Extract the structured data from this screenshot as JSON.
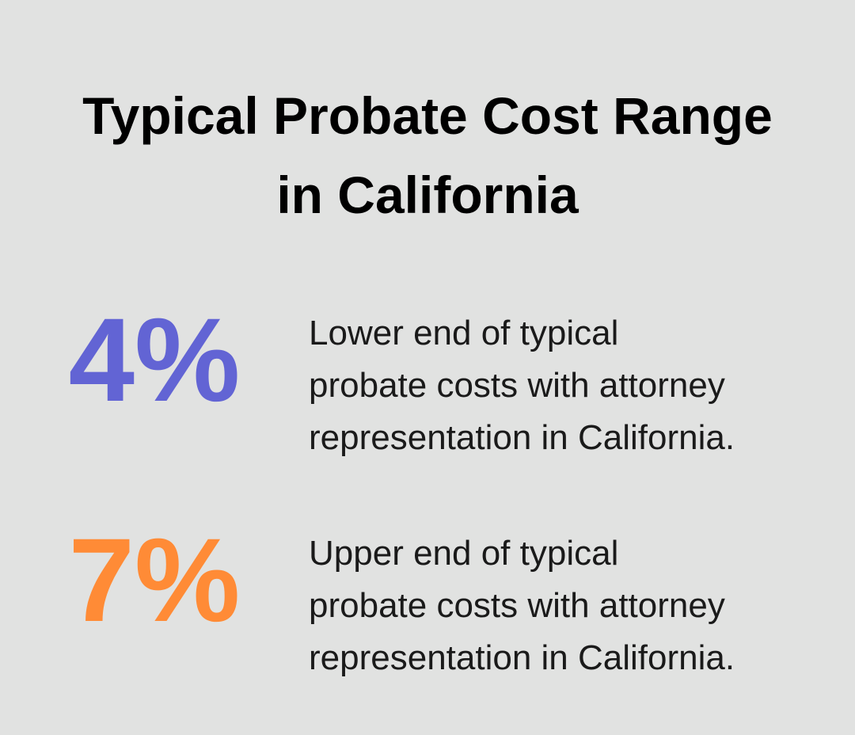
{
  "header": {
    "title_lines": [
      "Typical Probate Cost Range",
      "in California"
    ]
  },
  "stats": [
    {
      "value": "4%",
      "color": "#6264d4",
      "description_lines": [
        "Lower end of typical",
        "probate costs with attorney",
        "representation in California."
      ]
    },
    {
      "value": "7%",
      "color": "#ff8b36",
      "description_lines": [
        "Upper end of typical",
        "probate costs with attorney",
        "representation in California."
      ]
    }
  ]
}
